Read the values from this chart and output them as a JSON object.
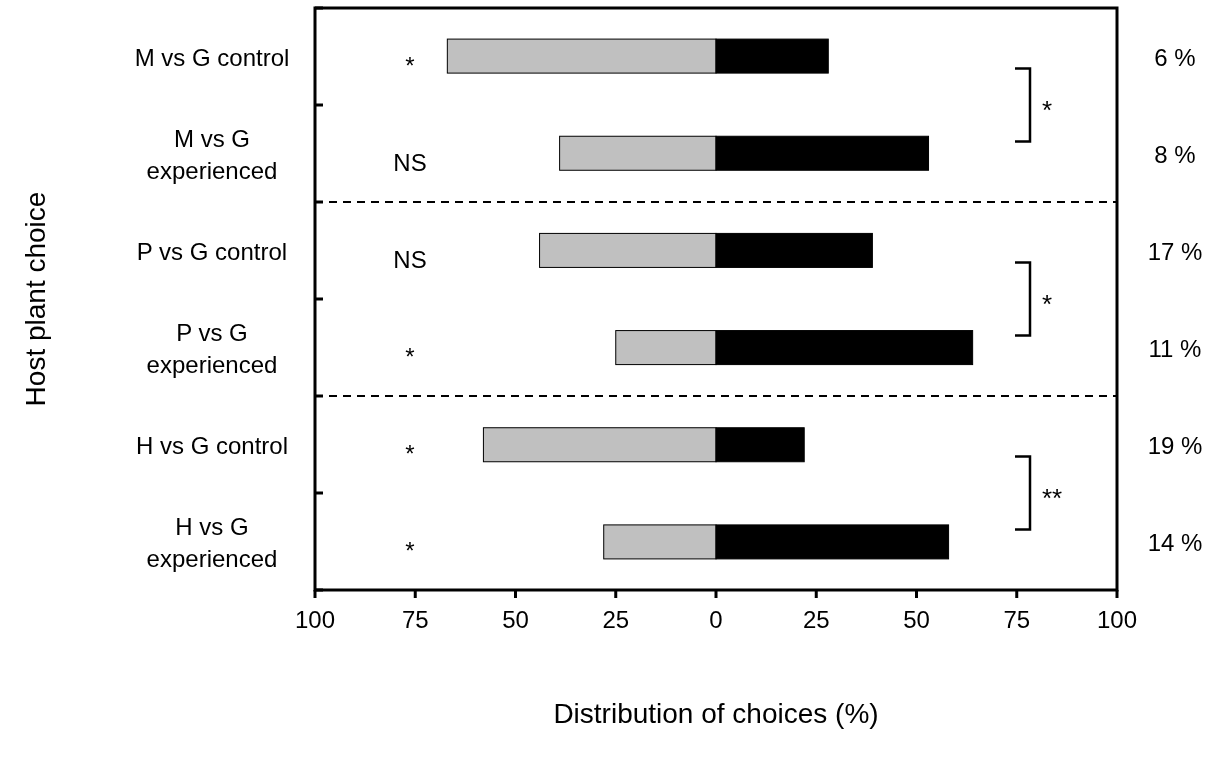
{
  "chart_data": {
    "type": "bar",
    "orientation": "horizontal",
    "stacked": true,
    "xlabel": "Distribution of choices (%)",
    "ylabel": "Host plant choice",
    "categories": [
      "M vs G control",
      "M vs G experienced",
      "P vs G control",
      "P vs G experienced",
      "H vs G control",
      "H vs G experienced"
    ],
    "series": [
      {
        "color": "#c0c0c0",
        "values": [
          -67,
          -39,
          -44,
          -25,
          -58,
          -28
        ]
      },
      {
        "color": "#000000",
        "values": [
          28,
          53,
          39,
          64,
          22,
          58
        ]
      }
    ],
    "xlim": [
      -100,
      100
    ],
    "xticks": [
      {
        "value": -100,
        "label": "100"
      },
      {
        "value": -75,
        "label": "75"
      },
      {
        "value": -50,
        "label": "50"
      },
      {
        "value": -25,
        "label": "25"
      },
      0,
      25,
      50,
      75,
      100
    ],
    "grid": false,
    "annotations": [
      "*",
      "NS",
      "NS",
      "*",
      "*",
      "*",
      "6 %",
      "8 %",
      "17 %",
      "11 %",
      "19 %",
      "14 %",
      "*",
      "*",
      "**"
    ]
  }
}
